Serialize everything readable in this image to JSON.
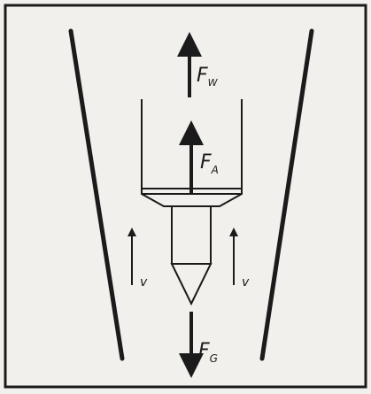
{
  "colors": {
    "background": "#f1f0ec",
    "ink": "#1b1b1b"
  },
  "labels": {
    "fw": {
      "main": "F",
      "sub": "W"
    },
    "fa": {
      "main": "F",
      "sub": "A"
    },
    "fg": {
      "main": "F",
      "sub": "G"
    },
    "v_left": "v",
    "v_right": "v"
  }
}
